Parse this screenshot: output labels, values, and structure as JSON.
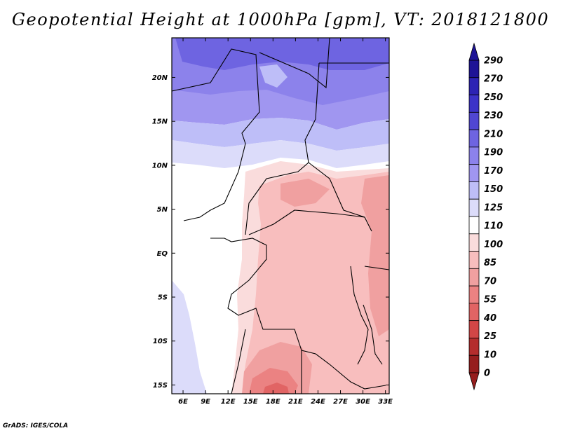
{
  "title": "Geopotential Height at 1000hPa [gpm], VT: 2018121800",
  "credit": "GrADS: IGES/COLA",
  "map": {
    "lon_ticks": [
      "6E",
      "9E",
      "12E",
      "15E",
      "18E",
      "21E",
      "24E",
      "27E",
      "30E",
      "33E"
    ],
    "lat_ticks": [
      "20N",
      "15N",
      "10N",
      "5N",
      "EQ",
      "5S",
      "10S",
      "15S"
    ],
    "lon_range": [
      4.5,
      33.5
    ],
    "lat_range": [
      -16,
      24.5
    ]
  },
  "colorbar": {
    "labels": [
      "290",
      "270",
      "250",
      "230",
      "210",
      "190",
      "170",
      "150",
      "125",
      "110",
      "100",
      "85",
      "70",
      "55",
      "40",
      "25",
      "10",
      "0"
    ],
    "colors": [
      "#1e1496",
      "#2d23b4",
      "#3c32c8",
      "#5046d2",
      "#6e64e1",
      "#8c82eb",
      "#a096f0",
      "#bebef8",
      "#dcdcfa",
      "#ffffff",
      "#fadcdc",
      "#f8bebe",
      "#f0a0a0",
      "#eb8282",
      "#e16464",
      "#d24646",
      "#b42d2d",
      "#961e1e"
    ]
  }
}
